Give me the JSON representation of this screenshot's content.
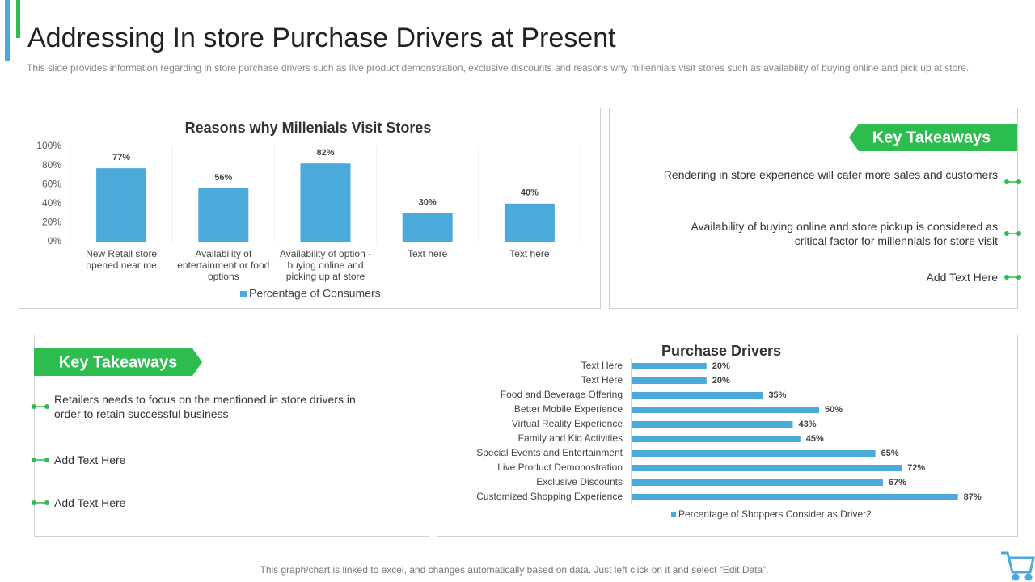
{
  "header": {
    "title": "Addressing In store Purchase Drivers at Present",
    "subtitle": "This slide provides information regarding in store purchase drivers such as live product demonstration, exclusive discounts and reasons why millennials visit stores such as availability of buying online and pick up at store."
  },
  "chart_data": [
    {
      "type": "bar",
      "title": "Reasons why Millenials Visit Stores",
      "categories": [
        "New Retail store opened near me",
        "Availability of entertainment or food options",
        "Availability of option - buying online and picking up at store",
        "Text here",
        "Text here"
      ],
      "series": [
        {
          "name": "Percentage of Consumers",
          "color": "#4ba9dc",
          "values": [
            77,
            56,
            82,
            30,
            40
          ],
          "value_labels": [
            "77%",
            "56%",
            "82%",
            "30%",
            "40%"
          ]
        }
      ],
      "ylim": [
        0,
        100
      ],
      "yticks": [
        {
          "value": 0,
          "label": "0%"
        },
        {
          "value": 20,
          "label": "20%"
        },
        {
          "value": 40,
          "label": "40%"
        },
        {
          "value": 60,
          "label": "60%"
        },
        {
          "value": 80,
          "label": "80%"
        },
        {
          "value": 100,
          "label": "100%"
        }
      ],
      "grid": false
    },
    {
      "type": "hbar",
      "title": "Purchase Drivers",
      "categories": [
        "Text Here",
        "Text Here",
        "Food and Beverage Offering",
        "Better Mobile Experience",
        "Virtual Reality Experience",
        "Family and Kid Activities",
        "Special Events and Entertainment",
        "Live Product Demonostration",
        "Exclusive Discounts",
        "Customized Shopping Experience"
      ],
      "series": [
        {
          "name": "Percentage of Shoppers Consider as Driver2",
          "color": "#4ba9dc",
          "values": [
            20,
            20,
            35,
            50,
            43,
            45,
            65,
            72,
            67,
            87
          ],
          "value_labels": [
            "20%",
            "20%",
            "35%",
            "50%",
            "43%",
            "45%",
            "65%",
            "72%",
            "67%",
            "87%"
          ]
        }
      ],
      "xlim": [
        0,
        100
      ]
    }
  ],
  "takeaways_right": {
    "title": "Key Takeaways",
    "items": [
      "Rendering in store experience will cater more sales and customers",
      "Availability of buying online and store pickup is considered as critical factor for millennials for store visit",
      "Add Text Here"
    ]
  },
  "takeaways_left": {
    "title": "Key Takeaways",
    "items": [
      "Retailers needs to focus on the mentioned in store drivers in order to retain successful business",
      "Add Text Here",
      "Add Text Here"
    ]
  },
  "footer": "This graph/chart is linked to excel, and changes automatically based on data. Just left click on it and select “Edit Data”."
}
